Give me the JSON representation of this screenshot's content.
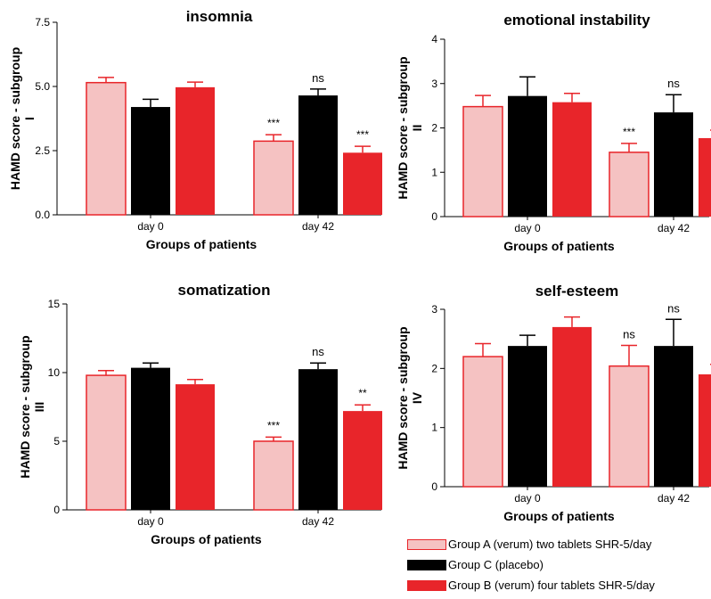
{
  "colors": {
    "group_a_fill": "#f5c2c2",
    "group_a_stroke": "#e8252a",
    "group_c_fill": "#000000",
    "group_b_fill": "#e8252a",
    "error_a": "#e8252a",
    "error_c": "#000000",
    "error_b": "#e8252a"
  },
  "legend": {
    "items": [
      {
        "label": "Group A (verum) two tablets SHR-5/day",
        "key": "A"
      },
      {
        "label": "Group C (placebo)",
        "key": "C"
      },
      {
        "label": "Group B (verum) four tablets SHR-5/day",
        "key": "B"
      }
    ]
  },
  "chart_data": [
    {
      "type": "bar",
      "title": "insomnia",
      "xlabel": "Groups of patients",
      "ylabel": "HAMD score - subgroup",
      "ylabel2": "I",
      "categories": [
        "day 0",
        "day 42"
      ],
      "ylim": [
        0,
        7.5
      ],
      "yticks": [
        "0.0",
        "2.5",
        "5.0",
        "7.5"
      ],
      "series": [
        {
          "name": "Group A (verum) two tablets SHR-5/day",
          "key": "A",
          "values": [
            5.15,
            2.87
          ],
          "errors": [
            0.2,
            0.25
          ]
        },
        {
          "name": "Group C (placebo)",
          "key": "C",
          "values": [
            4.2,
            4.65
          ],
          "errors": [
            0.3,
            0.25
          ]
        },
        {
          "name": "Group B (verum) four tablets SHR-5/day",
          "key": "B",
          "values": [
            4.97,
            2.42
          ],
          "errors": [
            0.2,
            0.25
          ]
        }
      ],
      "annotations": [
        [
          "",
          "",
          ""
        ],
        [
          "***",
          "ns",
          "***"
        ]
      ]
    },
    {
      "type": "bar",
      "title": "emotional instability",
      "xlabel": "Groups of patients",
      "ylabel": "HAMD score - subgroup",
      "ylabel2": "II",
      "categories": [
        "day 0",
        "day 42"
      ],
      "ylim": [
        0,
        4
      ],
      "yticks": [
        "0",
        "1",
        "2",
        "3",
        "4"
      ],
      "series": [
        {
          "name": "Group A (verum) two tablets SHR-5/day",
          "key": "A",
          "values": [
            2.48,
            1.45
          ],
          "errors": [
            0.25,
            0.2
          ]
        },
        {
          "name": "Group C (placebo)",
          "key": "C",
          "values": [
            2.72,
            2.35
          ],
          "errors": [
            0.43,
            0.4
          ]
        },
        {
          "name": "Group B (verum) four tablets SHR-5/day",
          "key": "B",
          "values": [
            2.58,
            1.77
          ],
          "errors": [
            0.2,
            0.18
          ]
        }
      ],
      "annotations": [
        [
          "",
          "",
          ""
        ],
        [
          "***",
          "ns",
          "***"
        ]
      ]
    },
    {
      "type": "bar",
      "title": "somatization",
      "xlabel": "Groups of patients",
      "ylabel": "HAMD score - subgroup",
      "ylabel2": "III",
      "categories": [
        "day 0",
        "day 42"
      ],
      "ylim": [
        0,
        15
      ],
      "yticks": [
        "0",
        "5",
        "10",
        "15"
      ],
      "series": [
        {
          "name": "Group A (verum) two tablets SHR-5/day",
          "key": "A",
          "values": [
            9.8,
            5.0
          ],
          "errors": [
            0.35,
            0.3
          ]
        },
        {
          "name": "Group C (placebo)",
          "key": "C",
          "values": [
            10.35,
            10.25
          ],
          "errors": [
            0.35,
            0.45
          ]
        },
        {
          "name": "Group B (verum) four tablets SHR-5/day",
          "key": "B",
          "values": [
            9.15,
            7.2
          ],
          "errors": [
            0.35,
            0.45
          ]
        }
      ],
      "annotations": [
        [
          "",
          "",
          ""
        ],
        [
          "***",
          "ns",
          "**"
        ]
      ]
    },
    {
      "type": "bar",
      "title": "self-esteem",
      "xlabel": "Groups of patients",
      "ylabel": "HAMD score - subgroup",
      "ylabel2": "IV",
      "categories": [
        "day 0",
        "day 42"
      ],
      "ylim": [
        0,
        3
      ],
      "yticks": [
        "0",
        "1",
        "2",
        "3"
      ],
      "series": [
        {
          "name": "Group A (verum) two tablets SHR-5/day",
          "key": "A",
          "values": [
            2.2,
            2.04
          ],
          "errors": [
            0.22,
            0.35
          ]
        },
        {
          "name": "Group C (placebo)",
          "key": "C",
          "values": [
            2.38,
            2.38
          ],
          "errors": [
            0.18,
            0.45
          ]
        },
        {
          "name": "Group B (verum) four tablets SHR-5/day",
          "key": "B",
          "values": [
            2.7,
            1.9
          ],
          "errors": [
            0.17,
            0.17
          ]
        }
      ],
      "annotations": [
        [
          "",
          "",
          ""
        ],
        [
          "ns",
          "ns",
          "***"
        ]
      ]
    }
  ]
}
